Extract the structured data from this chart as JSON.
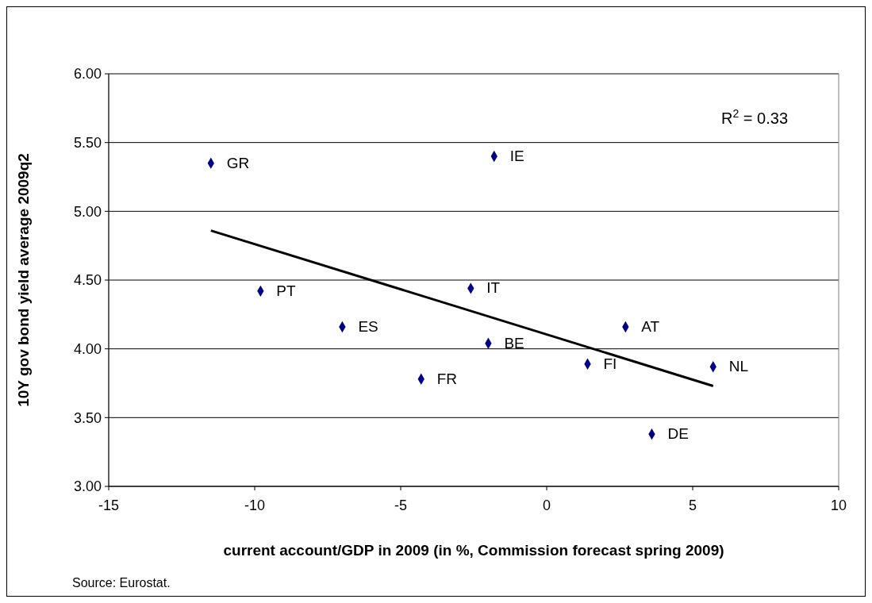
{
  "chart_data": {
    "type": "scatter",
    "xlabel": "current account/GDP in 2009 (in %, Commission forecast spring 2009)",
    "ylabel": "10Y gov bond yield average 2009q2",
    "xlim": [
      -15,
      10
    ],
    "xticks": [
      -15,
      -10,
      -5,
      0,
      5,
      10
    ],
    "ylim": [
      3,
      6
    ],
    "yticks": [
      {
        "value": 3,
        "label": "3.00"
      },
      {
        "value": 3.5,
        "label": "3.50"
      },
      {
        "value": 4,
        "label": "4.00"
      },
      {
        "value": 4.5,
        "label": "4.50"
      },
      {
        "value": 5,
        "label": "5.00"
      },
      {
        "value": 5.5,
        "label": "5.50"
      },
      {
        "value": 6,
        "label": "6.00"
      }
    ],
    "grid": "y",
    "marker": "diamond",
    "series": [
      {
        "color": "#000080",
        "x": [
          -11.5,
          -1.8,
          -9.8,
          -2.6,
          -7.0,
          2.7,
          -2.0,
          1.4,
          5.7,
          -4.3,
          3.6
        ],
        "values": [
          5.35,
          5.4,
          4.42,
          4.44,
          4.16,
          4.16,
          4.04,
          3.89,
          3.87,
          3.78,
          3.38
        ]
      },
      {
        "type": "line",
        "color": "#000000",
        "marker": "none",
        "x": [
          -11.5,
          5.7
        ],
        "values": [
          4.86,
          3.73
        ]
      }
    ],
    "annotations": [
      "R$^{2}$ = 0.33",
      "Source: Eurostat.",
      {
        "text": "GR",
        "x": -11.5,
        "y": 5.35
      },
      {
        "text": "IE",
        "x": -1.8,
        "y": 5.4
      },
      {
        "text": "PT",
        "x": -9.8,
        "y": 4.42
      },
      {
        "text": "IT",
        "x": -2.6,
        "y": 4.44
      },
      {
        "text": "ES",
        "x": -7.0,
        "y": 4.16
      },
      {
        "text": "AT",
        "x": 2.7,
        "y": 4.16
      },
      {
        "text": "BE",
        "x": -2.0,
        "y": 4.04
      },
      {
        "text": "FI",
        "x": 1.4,
        "y": 3.89
      },
      {
        "text": "NL",
        "x": 5.7,
        "y": 3.87
      },
      {
        "text": "FR",
        "x": -4.3,
        "y": 3.78
      },
      {
        "text": "DE",
        "x": 3.6,
        "y": 3.38
      }
    ]
  }
}
